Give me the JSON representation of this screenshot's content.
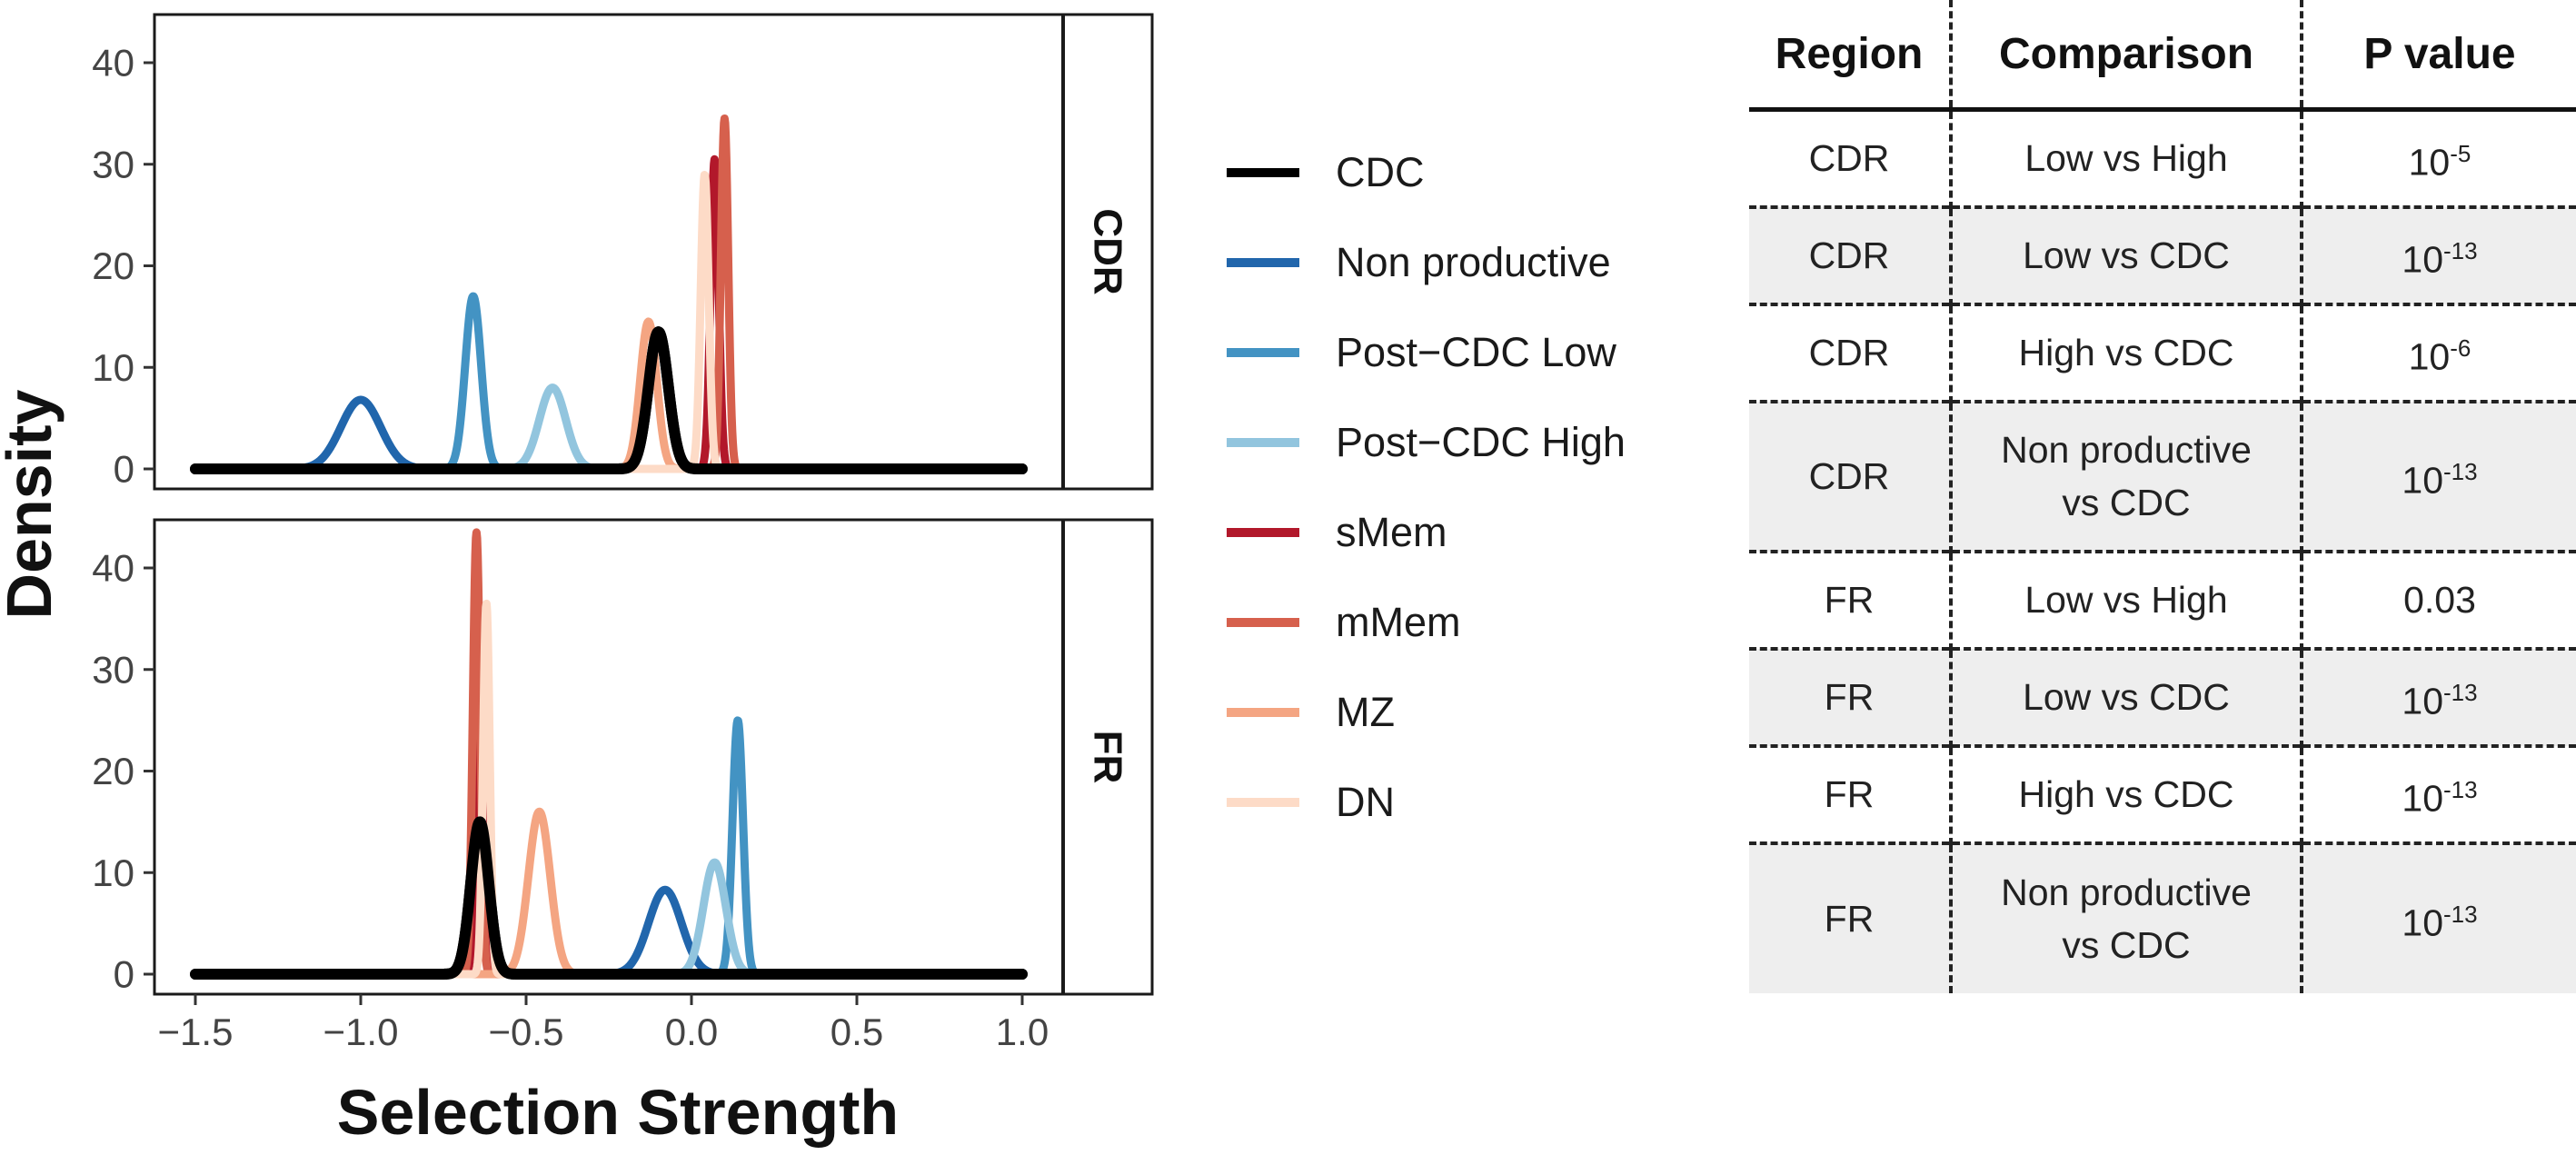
{
  "chart_data": {
    "type": "density",
    "title": "",
    "xlabel": "Selection Strength",
    "ylabel": "Density",
    "xlim": [
      -1.5,
      1.0
    ],
    "ylim": [
      0,
      45
    ],
    "xticks": [
      "−1.5",
      "−1.0",
      "−0.5",
      "0.0",
      "0.5",
      "1.0"
    ],
    "yticks": [
      "0",
      "10",
      "20",
      "30",
      "40"
    ],
    "panels": [
      "CDR",
      "FR"
    ],
    "legend_position": "right",
    "series": [
      {
        "name": "CDC",
        "color": "#000000",
        "peaks": {
          "CDR": {
            "mean": -0.1,
            "sd": 0.03,
            "height": 13.5
          },
          "FR": {
            "mean": -0.64,
            "sd": 0.027,
            "height": 15
          }
        }
      },
      {
        "name": "Non productive",
        "color": "#2166ac",
        "peaks": {
          "CDR": {
            "mean": -1.0,
            "sd": 0.06,
            "height": 6.8
          },
          "FR": {
            "mean": -0.08,
            "sd": 0.05,
            "height": 8.3
          }
        }
      },
      {
        "name": "Post−CDC Low",
        "color": "#4393c3",
        "peaks": {
          "CDR": {
            "mean": -0.66,
            "sd": 0.024,
            "height": 17
          },
          "FR": {
            "mean": 0.14,
            "sd": 0.016,
            "height": 25
          }
        }
      },
      {
        "name": "Post−CDC High",
        "color": "#92c5de",
        "peaks": {
          "CDR": {
            "mean": -0.42,
            "sd": 0.04,
            "height": 8
          },
          "FR": {
            "mean": 0.07,
            "sd": 0.034,
            "height": 11
          }
        }
      },
      {
        "name": "sMem",
        "color": "#b2182b",
        "peaks": {
          "CDR": {
            "mean": 0.07,
            "sd": 0.012,
            "height": 30.5
          },
          "FR": {
            "mean": -0.63,
            "sd": 0.012,
            "height": 30
          }
        }
      },
      {
        "name": "mMem",
        "color": "#d6604d",
        "peaks": {
          "CDR": {
            "mean": 0.1,
            "sd": 0.011,
            "height": 34.5
          },
          "FR": {
            "mean": -0.65,
            "sd": 0.011,
            "height": 43.5
          }
        }
      },
      {
        "name": "MZ",
        "color": "#f4a582",
        "peaks": {
          "CDR": {
            "mean": -0.13,
            "sd": 0.025,
            "height": 14.5
          },
          "FR": {
            "mean": -0.46,
            "sd": 0.033,
            "height": 16
          }
        }
      },
      {
        "name": "DN",
        "color": "#fddbc7",
        "peaks": {
          "CDR": {
            "mean": 0.04,
            "sd": 0.012,
            "height": 29
          },
          "FR": {
            "mean": -0.62,
            "sd": 0.01,
            "height": 36.5
          }
        }
      }
    ]
  },
  "table": {
    "headers": [
      "Region",
      "Comparison",
      "P value"
    ],
    "rows": [
      {
        "region": "CDR",
        "comparison": [
          "Low vs High"
        ],
        "p_base": "10",
        "p_exp": "-5"
      },
      {
        "region": "CDR",
        "comparison": [
          "Low vs CDC"
        ],
        "p_base": "10",
        "p_exp": "-13"
      },
      {
        "region": "CDR",
        "comparison": [
          "High vs CDC"
        ],
        "p_base": "10",
        "p_exp": "-6"
      },
      {
        "region": "CDR",
        "comparison": [
          "Non productive",
          "vs CDC"
        ],
        "p_base": "10",
        "p_exp": "-13"
      },
      {
        "region": "FR",
        "comparison": [
          "Low vs High"
        ],
        "p_base": "0.03",
        "p_exp": ""
      },
      {
        "region": "FR",
        "comparison": [
          "Low vs CDC"
        ],
        "p_base": "10",
        "p_exp": "-13"
      },
      {
        "region": "FR",
        "comparison": [
          "High vs CDC"
        ],
        "p_base": "10",
        "p_exp": "-13"
      },
      {
        "region": "FR",
        "comparison": [
          "Non productive",
          "vs CDC"
        ],
        "p_base": "10",
        "p_exp": "-13"
      }
    ]
  }
}
